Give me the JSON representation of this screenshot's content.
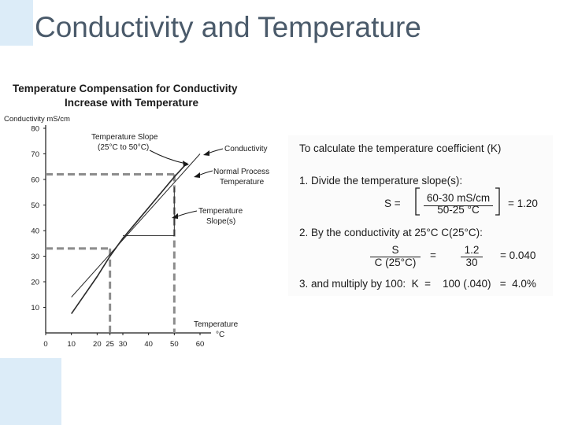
{
  "slide": {
    "title": "Conductivity and Temperature"
  },
  "chart_data": {
    "type": "line",
    "title": "Temperature Compensation for Conductivity",
    "subtitle": "Increase with Temperature",
    "ylabel": "Conductivity mS/cm",
    "xlabel_line1": "Temperature",
    "xlabel_line2": "°C",
    "xlim": [
      0,
      60
    ],
    "ylim": [
      0,
      80
    ],
    "x_ticks": [
      "0",
      "10",
      "20",
      "25",
      "30",
      "40",
      "50",
      "60"
    ],
    "x_tick_values": [
      0,
      10,
      20,
      25,
      30,
      40,
      50,
      60
    ],
    "y_ticks": [
      "10",
      "20",
      "30",
      "40",
      "50",
      "60",
      "70",
      "80"
    ],
    "y_tick_values": [
      10,
      20,
      30,
      40,
      50,
      60,
      70,
      80
    ],
    "series": [
      {
        "name": "Conductivity",
        "x": [
          10,
          20,
          25,
          30,
          40,
          50,
          55
        ],
        "y": [
          7.5,
          22,
          30,
          37,
          49,
          61,
          66.5
        ]
      },
      {
        "name": "Normal Process Temperature",
        "x": [
          10,
          60
        ],
        "y": [
          14,
          70
        ],
        "style": "thin"
      }
    ],
    "reference_lines": [
      {
        "x": 25,
        "y": 33
      },
      {
        "x": 50,
        "y": 62
      }
    ],
    "slope_triangle": {
      "x_from": 30,
      "x_to": 50,
      "y_low": 38,
      "y_high": 57
    },
    "annotations": [
      {
        "id": "slope",
        "lines": [
          "Temperature Slope",
          "(25°C to 50°C)"
        ]
      },
      {
        "id": "conductivity",
        "lines": [
          "Conductivity"
        ]
      },
      {
        "id": "normal",
        "lines": [
          "Normal Process",
          "Temperature"
        ]
      },
      {
        "id": "slopes",
        "lines": [
          "Temperature",
          "Slope(s)"
        ]
      }
    ],
    "colors": {
      "curve": "#2a2a2a",
      "dashed": "#8c8c8c",
      "axis": "#1a1a1a"
    }
  },
  "calc": {
    "heading": "To calculate the temperature coefficient (K)",
    "step1": "1. Divide the temperature slope(s):",
    "s_label": "S =",
    "s_num": "60-30 mS/cm",
    "s_den": "50-25 °C",
    "s_result": "= 1.20",
    "step2": "2. By the conductivity at 25°C  C(25°C):",
    "c_num": "S",
    "c_den": "C (25°C)",
    "c_eq": "=",
    "c_num2": "1.2",
    "c_den2": "30",
    "c_result": "= 0.040",
    "step3": "3. and multiply by 100:  K  =    100 (.040)   =  4.0%"
  }
}
